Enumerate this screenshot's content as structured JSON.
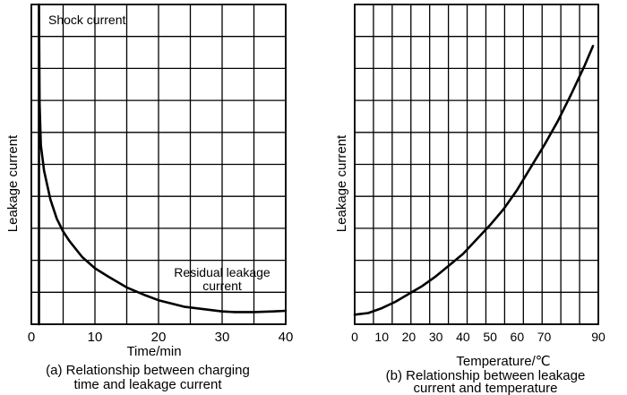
{
  "chart_data": [
    {
      "type": "line",
      "title": "",
      "caption_line1": "(a) Relationship between charging",
      "caption_line2": "time and leakage current",
      "xlabel": "Time/min",
      "ylabel": "Leakage current",
      "xlim": [
        0,
        40
      ],
      "xticks": [
        "0",
        "10",
        "20",
        "30",
        "40"
      ],
      "ylim": [
        0,
        10
      ],
      "yticks": [],
      "grid": true,
      "annotations": {
        "shock": "Shock current",
        "residual_line1": "Residual leakage",
        "residual_line2": "current"
      },
      "series": [
        {
          "x": [
            1.2,
            1.3,
            1.5,
            2,
            3,
            4,
            5,
            6,
            8,
            10,
            12,
            15,
            18,
            20,
            24,
            28,
            30,
            32,
            35,
            38,
            40
          ],
          "y": [
            10,
            6.9,
            5.6,
            4.8,
            3.9,
            3.3,
            2.9,
            2.6,
            2.1,
            1.75,
            1.5,
            1.15,
            0.9,
            0.75,
            0.55,
            0.45,
            0.4,
            0.38,
            0.38,
            0.4,
            0.42
          ]
        }
      ]
    },
    {
      "type": "line",
      "title": "",
      "caption_line1": "(b) Relationship between leakage",
      "caption_line2": "current and temperature",
      "xlabel": "Temperature/℃",
      "ylabel": "Leakage current",
      "xlim": [
        0,
        90
      ],
      "xticks": [
        "0",
        "10",
        "20",
        "30",
        "40",
        "50",
        "60",
        "70",
        "90"
      ],
      "ylim": [
        0,
        10
      ],
      "yticks": [],
      "grid": true,
      "series": [
        {
          "x": [
            0,
            5,
            10,
            15,
            20,
            25,
            30,
            35,
            40,
            45,
            50,
            55,
            60,
            65,
            70,
            75,
            80,
            85,
            88
          ],
          "y": [
            0.3,
            0.35,
            0.5,
            0.7,
            0.95,
            1.2,
            1.5,
            1.85,
            2.2,
            2.65,
            3.1,
            3.6,
            4.2,
            4.9,
            5.6,
            6.35,
            7.2,
            8.1,
            8.7
          ]
        }
      ]
    }
  ]
}
